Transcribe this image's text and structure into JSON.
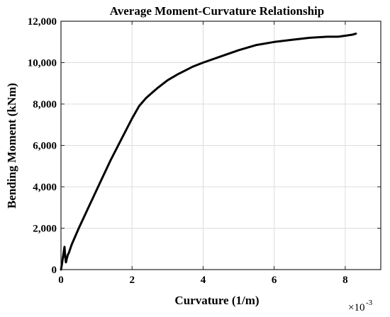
{
  "chart_data": {
    "type": "line",
    "title": "Average Moment-Curvature Relationship",
    "xlabel": "Curvature (1/m)",
    "ylabel": "Bending Moment (kNm)",
    "x_exponent_base": "×10",
    "x_exponent_power": "-3",
    "xlim": [
      0,
      9
    ],
    "ylim": [
      0,
      12000
    ],
    "grid": true,
    "xticks": [
      {
        "value": 0,
        "label": "0"
      },
      {
        "value": 2,
        "label": "2"
      },
      {
        "value": 4,
        "label": "4"
      },
      {
        "value": 6,
        "label": "6"
      },
      {
        "value": 8,
        "label": "8"
      }
    ],
    "yticks": [
      {
        "value": 0,
        "label": "0"
      },
      {
        "value": 2000,
        "label": "2,000"
      },
      {
        "value": 4000,
        "label": "4,000"
      },
      {
        "value": 6000,
        "label": "6,000"
      },
      {
        "value": 8000,
        "label": "8,000"
      },
      {
        "value": 10000,
        "label": "10,000"
      },
      {
        "value": 12000,
        "label": "12,000"
      }
    ],
    "series": [
      {
        "color": "#000000",
        "x": [
          0,
          0.03,
          0.06,
          0.09,
          0.1,
          0.12,
          0.14,
          0.16,
          0.19,
          0.22,
          0.3,
          0.5,
          0.8,
          1.1,
          1.4,
          1.7,
          2.0,
          2.2,
          2.4,
          2.7,
          3.0,
          3.3,
          3.7,
          4.0,
          4.5,
          5.0,
          5.5,
          6.0,
          6.5,
          7.0,
          7.5,
          7.8,
          8.0,
          8.2,
          8.3
        ],
        "y": [
          0,
          300,
          650,
          1000,
          1100,
          600,
          350,
          500,
          700,
          800,
          1200,
          2000,
          3100,
          4200,
          5300,
          6300,
          7300,
          7900,
          8300,
          8750,
          9150,
          9450,
          9800,
          10000,
          10300,
          10600,
          10850,
          11000,
          11100,
          11200,
          11250,
          11250,
          11300,
          11350,
          11400
        ]
      }
    ]
  }
}
